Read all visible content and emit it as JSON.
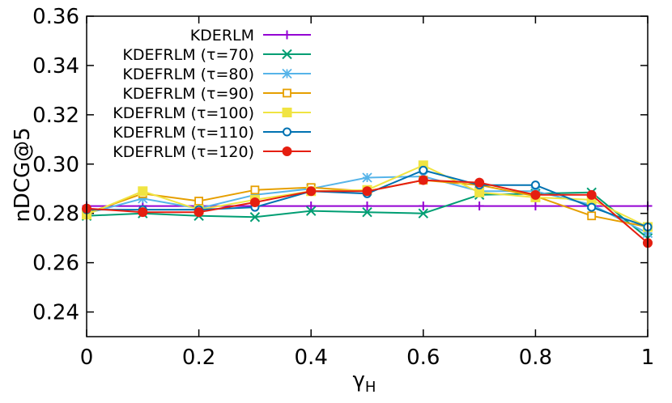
{
  "chart_data": {
    "type": "line",
    "title": "",
    "xlabel": "γ",
    "xlabel_sub": "H",
    "ylabel": "nDCG@5",
    "xlim": [
      0,
      1
    ],
    "ylim": [
      0.23,
      0.36
    ],
    "xticks": [
      0,
      0.2,
      0.4,
      0.6,
      0.8,
      1
    ],
    "xtick_labels": [
      "0",
      "0.2",
      "0.4",
      "0.6",
      "0.8",
      "1"
    ],
    "yticks": [
      0.24,
      0.26,
      0.28,
      0.3,
      0.32,
      0.34,
      0.36
    ],
    "ytick_labels": [
      "0.24",
      "0.26",
      "0.28",
      "0.30",
      "0.32",
      "0.34",
      "0.36"
    ],
    "grid": false,
    "legend_position": "top-left",
    "x": [
      0,
      0.1,
      0.2,
      0.3,
      0.4,
      0.5,
      0.6,
      0.7,
      0.8,
      0.9,
      1
    ],
    "series": [
      {
        "name": "KDERLM",
        "color": "#9400d3",
        "marker": "plus",
        "values": [
          0.283,
          0.283,
          0.283,
          0.283,
          0.283,
          0.283,
          0.283,
          0.283,
          0.283,
          0.283,
          0.283
        ]
      },
      {
        "name": "KDEFRLM (τ=70)",
        "color": "#009e73",
        "marker": "cross",
        "values": [
          0.279,
          0.28,
          0.279,
          0.2785,
          0.281,
          0.2805,
          0.28,
          0.2875,
          0.288,
          0.2885,
          0.27
        ]
      },
      {
        "name": "KDEFRLM (τ=80)",
        "color": "#56b4e9",
        "marker": "star",
        "values": [
          0.28,
          0.286,
          0.282,
          0.2875,
          0.29,
          0.2945,
          0.295,
          0.289,
          0.289,
          0.2835,
          0.272
        ]
      },
      {
        "name": "KDEFRLM (τ=90)",
        "color": "#e69f00",
        "marker": "square-open",
        "values": [
          0.28,
          0.288,
          0.285,
          0.2895,
          0.2905,
          0.289,
          0.2935,
          0.2915,
          0.287,
          0.279,
          0.2745
        ]
      },
      {
        "name": "KDEFRLM (τ=100)",
        "color": "#f0e442",
        "marker": "square-filled",
        "values": [
          0.2795,
          0.289,
          0.2815,
          0.2855,
          0.289,
          0.2895,
          0.2995,
          0.2885,
          0.2865,
          0.2855,
          0.2745
        ]
      },
      {
        "name": "KDEFRLM (τ=110)",
        "color": "#0072b2",
        "marker": "circle-open",
        "values": [
          0.2815,
          0.2815,
          0.2815,
          0.2825,
          0.289,
          0.288,
          0.2975,
          0.2915,
          0.2915,
          0.2825,
          0.2745
        ]
      },
      {
        "name": "KDEFRLM (τ=120)",
        "color": "#e51e10",
        "marker": "circle-filled",
        "values": [
          0.282,
          0.2805,
          0.2805,
          0.2845,
          0.289,
          0.289,
          0.2935,
          0.2925,
          0.2875,
          0.2875,
          0.268
        ]
      }
    ]
  }
}
